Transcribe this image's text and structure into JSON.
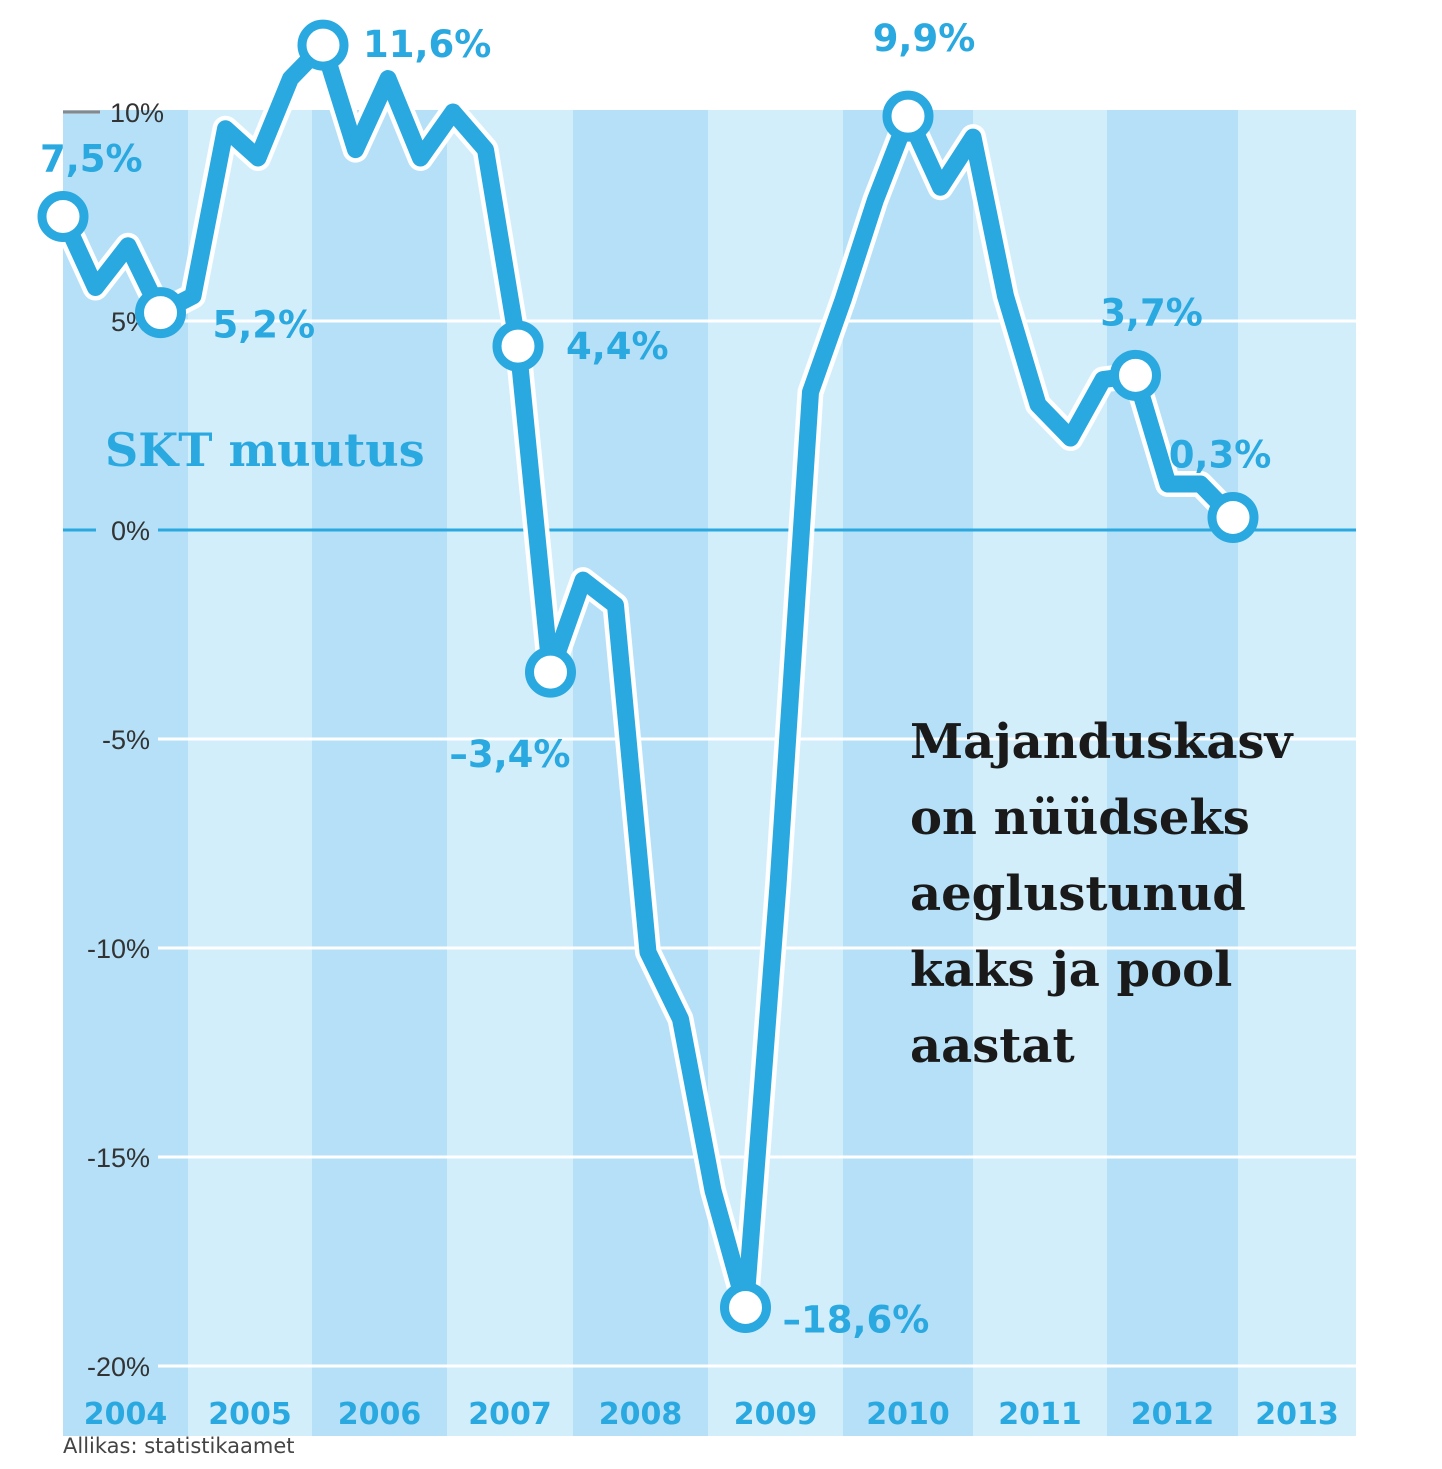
{
  "chart_data": {
    "type": "line",
    "title": "SKT muutus",
    "annotation": [
      "Majanduskasv",
      "on nüüdseks",
      "aeglustunud",
      "kaks ja pool",
      "aastat"
    ],
    "source": "Allikas: statistikaamet",
    "ylim": [
      -20,
      12
    ],
    "y_ticks": [
      {
        "value": 10,
        "label": "10%"
      },
      {
        "value": 5,
        "label": "5%"
      },
      {
        "value": 0,
        "label": "0%"
      },
      {
        "value": -5,
        "label": "-5%"
      },
      {
        "value": -10,
        "label": "-10%"
      },
      {
        "value": -15,
        "label": "-15%"
      },
      {
        "value": -20,
        "label": "-20%"
      }
    ],
    "years": [
      "2004",
      "2005",
      "2006",
      "2007",
      "2008",
      "2009",
      "2010",
      "2011",
      "2012",
      "2013"
    ],
    "grid": true,
    "colors": {
      "line": "#2aa8e0",
      "band_dark": "#b5e0f7",
      "band_light": "#d3eefb",
      "text": "#2aa8e0",
      "annotation": "#1a1a1a"
    },
    "series": [
      {
        "x": [
          0.0,
          0.25,
          0.5,
          0.75,
          1.0,
          1.25,
          1.5,
          1.75,
          2.0,
          2.25,
          2.5,
          2.75,
          3.0,
          3.25,
          3.5,
          3.75,
          4.0,
          4.25,
          4.5,
          4.75,
          5.0,
          5.25,
          5.5,
          5.75,
          6.0,
          6.25,
          6.5,
          6.75,
          7.0,
          7.25,
          7.5,
          7.75,
          8.0,
          8.25,
          8.5,
          8.75,
          9.0,
          9.25,
          9.5,
          9.75
        ],
        "values": [
          7.5,
          5.8,
          6.8,
          5.2,
          5.6,
          9.6,
          8.9,
          10.8,
          11.6,
          9.1,
          10.8,
          8.9,
          10.0,
          9.1,
          4.4,
          -3.4,
          -1.2,
          -1.8,
          -10.1,
          -11.7,
          -15.8,
          -18.6,
          -8.5,
          3.3,
          5.5,
          7.9,
          9.9,
          8.2,
          9.4,
          5.6,
          3.0,
          2.2,
          3.6,
          3.7,
          1.1,
          1.1,
          0.3,
          0.0,
          0.0,
          0.0
        ],
        "plot_points": 37
      }
    ],
    "point_labels": [
      {
        "index": 0,
        "label": "7,5%"
      },
      {
        "index": 3,
        "label": "5,2%"
      },
      {
        "index": 8,
        "label": "11,6%"
      },
      {
        "index": 14,
        "label": "4,4%"
      },
      {
        "index": 15,
        "label": "–3,4%"
      },
      {
        "index": 21,
        "label": "–18,6%"
      },
      {
        "index": 26,
        "label": "9,9%"
      },
      {
        "index": 33,
        "label": "3,7%"
      },
      {
        "index": 36,
        "label": "0,3%"
      }
    ]
  }
}
